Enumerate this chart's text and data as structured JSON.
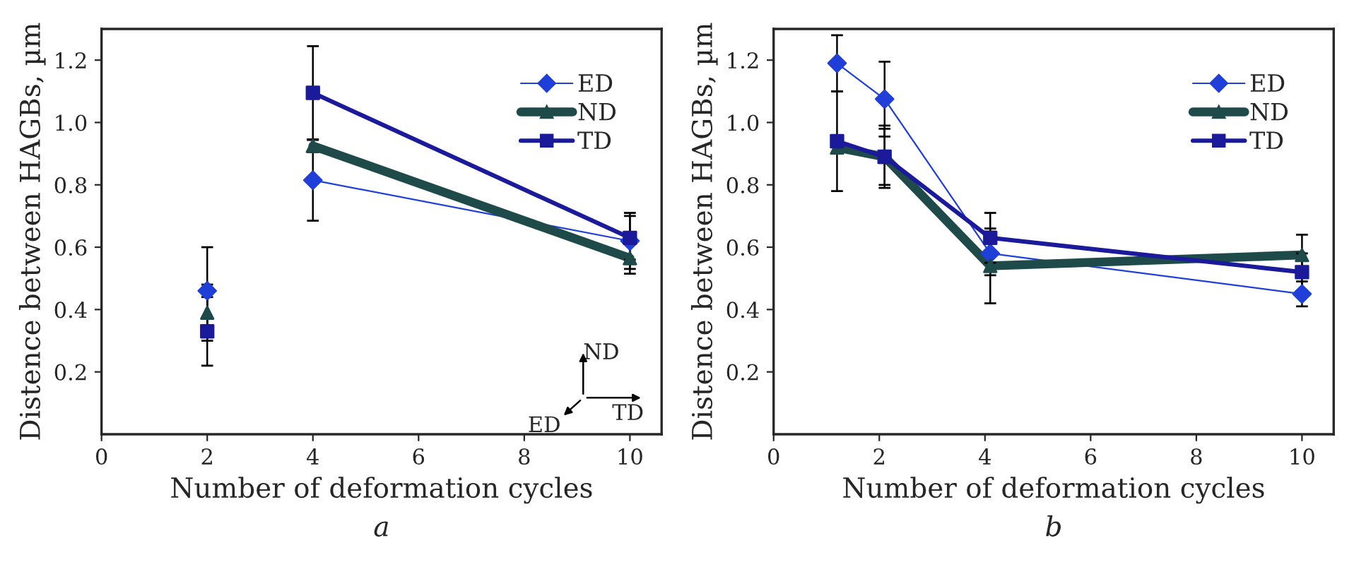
{
  "chart_data": [
    {
      "type": "line",
      "xlabel": "Number of deformation cycles",
      "ylabel": "Distence between HAGBs, µm",
      "x": [
        2,
        3,
        4,
        10
      ],
      "xlim": [
        0,
        10.6
      ],
      "ylim": [
        0,
        1.3
      ],
      "xticks": [
        0,
        2,
        4,
        6,
        8,
        10
      ],
      "yticks": [
        {
          "value": 0.2,
          "label": "0.2"
        },
        {
          "value": 0.4,
          "label": "0.4"
        },
        {
          "value": 0.6,
          "label": "0.6"
        },
        {
          "value": 0.8,
          "label": "0.8"
        },
        {
          "value": 1.0,
          "label": "1.0"
        },
        {
          "value": 1.2,
          "label": "1.2"
        }
      ],
      "legend": "top right",
      "grid": false,
      "series": [
        {
          "name": "ED",
          "color": "#1f3fd8",
          "marker": "diamond",
          "values": [
            0.46,
            null,
            0.815,
            0.62
          ],
          "errors": [
            0.14,
            null,
            0.13,
            0.09
          ]
        },
        {
          "name": "ND",
          "color": "#1f4a4a",
          "marker": "triangle",
          "values": [
            0.39,
            null,
            0.925,
            0.565
          ],
          "errors": [
            0.09,
            null,
            0.02,
            0.05
          ]
        },
        {
          "name": "TD",
          "color": "#1a1a9a",
          "marker": "square",
          "values": [
            0.33,
            null,
            1.095,
            0.63
          ],
          "errors": [
            0.11,
            null,
            0.15,
            0.07
          ]
        }
      ],
      "annotations": [
        "a",
        "ND",
        "TD",
        "ED"
      ]
    },
    {
      "type": "line",
      "xlabel": "Number of deformation cycles",
      "ylabel": "Distence between HAGBs, µm",
      "x": [
        1.2,
        2.1,
        4.1,
        10
      ],
      "xlim": [
        0,
        10.6
      ],
      "ylim": [
        0,
        1.3
      ],
      "xticks": [
        0,
        2,
        4,
        6,
        8,
        10
      ],
      "yticks": [
        {
          "value": 0.2,
          "label": "0.2"
        },
        {
          "value": 0.4,
          "label": "0.4"
        },
        {
          "value": 0.6,
          "label": "0.6"
        },
        {
          "value": 0.8,
          "label": "0.8"
        },
        {
          "value": 1.0,
          "label": "1.0"
        },
        {
          "value": 1.2,
          "label": "1.2"
        }
      ],
      "legend": "top right",
      "grid": false,
      "series": [
        {
          "name": "ED",
          "color": "#1f3fd8",
          "marker": "diamond",
          "values": [
            1.19,
            1.075,
            0.58,
            0.45
          ],
          "errors": [
            0.09,
            0.12,
            0.07,
            0.04
          ]
        },
        {
          "name": "ND",
          "color": "#1f4a4a",
          "marker": "triangle",
          "values": [
            0.92,
            0.89,
            0.54,
            0.575
          ],
          "errors": [
            null,
            0.09,
            0.12,
            0.065
          ]
        },
        {
          "name": "TD",
          "color": "#1a1a9a",
          "marker": "square",
          "values": [
            0.94,
            0.89,
            0.63,
            0.52
          ],
          "errors": [
            0.16,
            0.1,
            0.08,
            0.06
          ]
        }
      ],
      "annotations": [
        "b"
      ]
    }
  ]
}
